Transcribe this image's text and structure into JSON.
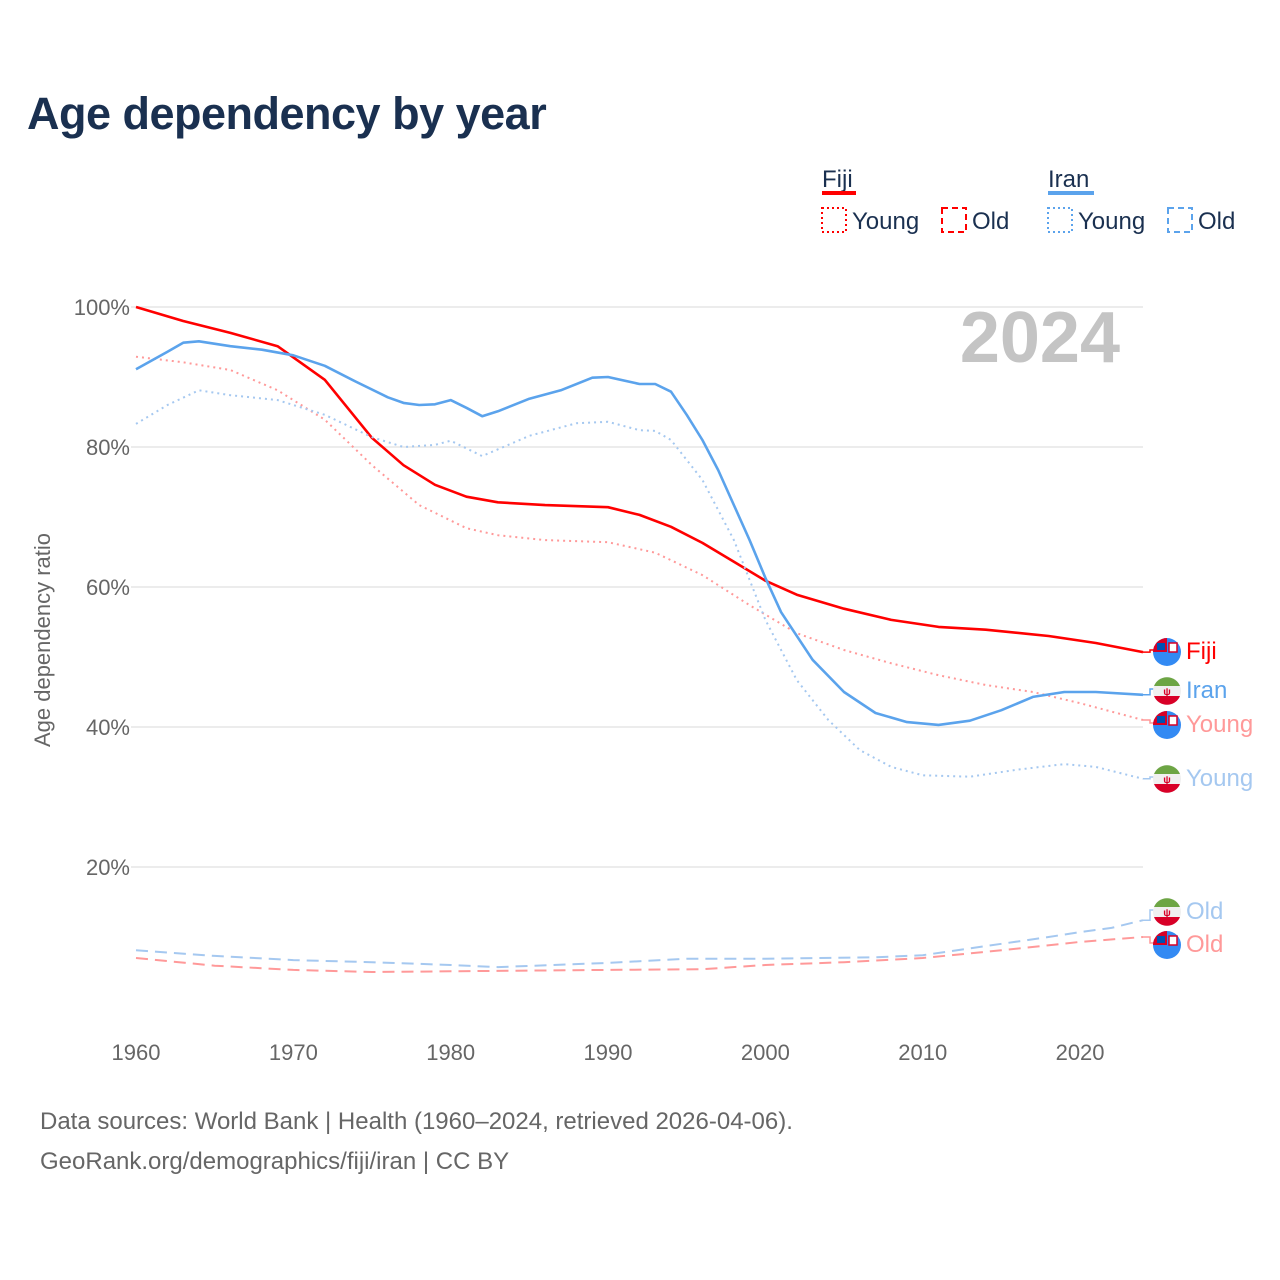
{
  "title": "Age dependency by year",
  "year_badge": "2024",
  "footer": {
    "line1": "Data sources: World Bank | Health (1960–2024, retrieved 2026-04-06).",
    "line2": "GeoRank.org/demographics/fiji/iran | CC BY"
  },
  "legend": {
    "groups": [
      {
        "name": "Fiji",
        "color": "#ff0000",
        "items": [
          "Young",
          "Old"
        ]
      },
      {
        "name": "Iran",
        "color": "#5ba3ec",
        "items": [
          "Young",
          "Old"
        ]
      }
    ]
  },
  "chart_data": {
    "type": "line",
    "title": "Age dependency by year",
    "xlabel": "",
    "ylabel": "Age dependency ratio",
    "xlim": [
      1960,
      2024
    ],
    "ylim": [
      0,
      100
    ],
    "xticks": [
      1960,
      1970,
      1980,
      1990,
      2000,
      2010,
      2020
    ],
    "xtick_labels": [
      "1960",
      "1970",
      "1980",
      "1990",
      "2000",
      "2010",
      "2020"
    ],
    "yticks": [
      20,
      40,
      60,
      80,
      100
    ],
    "ytick_labels": [
      "20%",
      "40%",
      "60%",
      "80%",
      "100%"
    ],
    "grid": true,
    "series": [
      {
        "name": "Fiji",
        "label": "Fiji",
        "country": "Fiji",
        "color": "#ff0000",
        "style": "solid",
        "x": [
          1960,
          1963,
          1966,
          1969,
          1972,
          1975,
          1977,
          1979,
          1981,
          1983,
          1986,
          1990,
          1992,
          1994,
          1996,
          1998,
          2000,
          2002,
          2005,
          2008,
          2011,
          2014,
          2018,
          2021,
          2024
        ],
        "y": [
          100,
          98,
          96.3,
          94.4,
          89.6,
          81.3,
          77.4,
          74.6,
          72.9,
          72.1,
          71.7,
          71.4,
          70.3,
          68.6,
          66.3,
          63.6,
          60.9,
          58.9,
          56.9,
          55.3,
          54.3,
          53.9,
          53,
          52,
          50.7
        ]
      },
      {
        "name": "Fiji Young",
        "label": "Young",
        "country": "Fiji",
        "color": "#ff9999",
        "style": "dotted",
        "x": [
          1960,
          1963,
          1966,
          1969,
          1972,
          1975,
          1978,
          1981,
          1983,
          1986,
          1990,
          1993,
          1996,
          1999,
          2002,
          2005,
          2008,
          2011,
          2014,
          2017,
          2020,
          2024
        ],
        "y": [
          92.9,
          92.1,
          91,
          88.1,
          83.9,
          77.4,
          71.7,
          68.4,
          67.4,
          66.7,
          66.4,
          64.9,
          61.7,
          57.4,
          53.4,
          51,
          49.1,
          47.4,
          46,
          45,
          43.4,
          41
        ]
      },
      {
        "name": "Fiji Old",
        "label": "Old",
        "country": "Fiji",
        "color": "#ff9999",
        "style": "dashed",
        "x": [
          1960,
          1965,
          1970,
          1975,
          1980,
          1990,
          1996,
          2000,
          2005,
          2010,
          2015,
          2020,
          2024
        ],
        "y": [
          7,
          5.9,
          5.3,
          5,
          5.1,
          5.3,
          5.4,
          6,
          6.4,
          7,
          8.1,
          9.3,
          10
        ]
      },
      {
        "name": "Iran",
        "label": "Iran",
        "country": "Iran",
        "color": "#5ba3ec",
        "style": "solid",
        "x": [
          1960,
          1962,
          1963,
          1964,
          1966,
          1968,
          1970,
          1972,
          1974,
          1976,
          1977,
          1978,
          1979,
          1980,
          1981,
          1982,
          1983,
          1985,
          1987,
          1989,
          1990,
          1992,
          1993,
          1994,
          1995,
          1996,
          1997,
          1998,
          1999,
          2000,
          2001,
          2003,
          2005,
          2007,
          2009,
          2011,
          2013,
          2015,
          2017,
          2019,
          2021,
          2024
        ],
        "y": [
          91.1,
          93.6,
          94.9,
          95.1,
          94.4,
          93.9,
          93.1,
          91.6,
          89.3,
          87.1,
          86.3,
          86,
          86.1,
          86.7,
          85.6,
          84.4,
          85.1,
          86.9,
          88.1,
          89.9,
          90,
          89,
          89,
          87.9,
          84.6,
          81,
          76.7,
          71.7,
          66.7,
          61.3,
          56.4,
          49.6,
          45,
          42,
          40.7,
          40.3,
          40.9,
          42.4,
          44.3,
          45,
          45,
          44.6
        ]
      },
      {
        "name": "Iran Young",
        "label": "Young",
        "country": "Iran",
        "color": "#a5c8f0",
        "style": "dotted",
        "x": [
          1960,
          1962,
          1964,
          1966,
          1969,
          1972,
          1975,
          1977,
          1979,
          1980,
          1982,
          1985,
          1988,
          1990,
          1992,
          1993,
          1994,
          1996,
          1998,
          2000,
          2002,
          2004,
          2006,
          2008,
          2010,
          2013,
          2016,
          2019,
          2021,
          2024
        ],
        "y": [
          83.3,
          86,
          88.1,
          87.4,
          86.7,
          84.6,
          81.4,
          80,
          80.3,
          80.9,
          78.7,
          81.6,
          83.4,
          83.6,
          82.4,
          82.3,
          81,
          75.3,
          66.7,
          55.3,
          46.7,
          41,
          36.7,
          34.3,
          33.1,
          32.9,
          33.9,
          34.7,
          34.3,
          32.6
        ]
      },
      {
        "name": "Iran Old",
        "label": "Old",
        "country": "Iran",
        "color": "#a5c8f0",
        "style": "dashed",
        "x": [
          1960,
          1965,
          1970,
          1975,
          1980,
          1983,
          1990,
          1995,
          2000,
          2007,
          2010,
          2014,
          2018,
          2020,
          2022,
          2024
        ],
        "y": [
          8.1,
          7.3,
          6.7,
          6.4,
          6,
          5.7,
          6.3,
          6.9,
          6.9,
          7.1,
          7.4,
          8.7,
          10,
          10.7,
          11.3,
          12.4
        ]
      }
    ]
  }
}
